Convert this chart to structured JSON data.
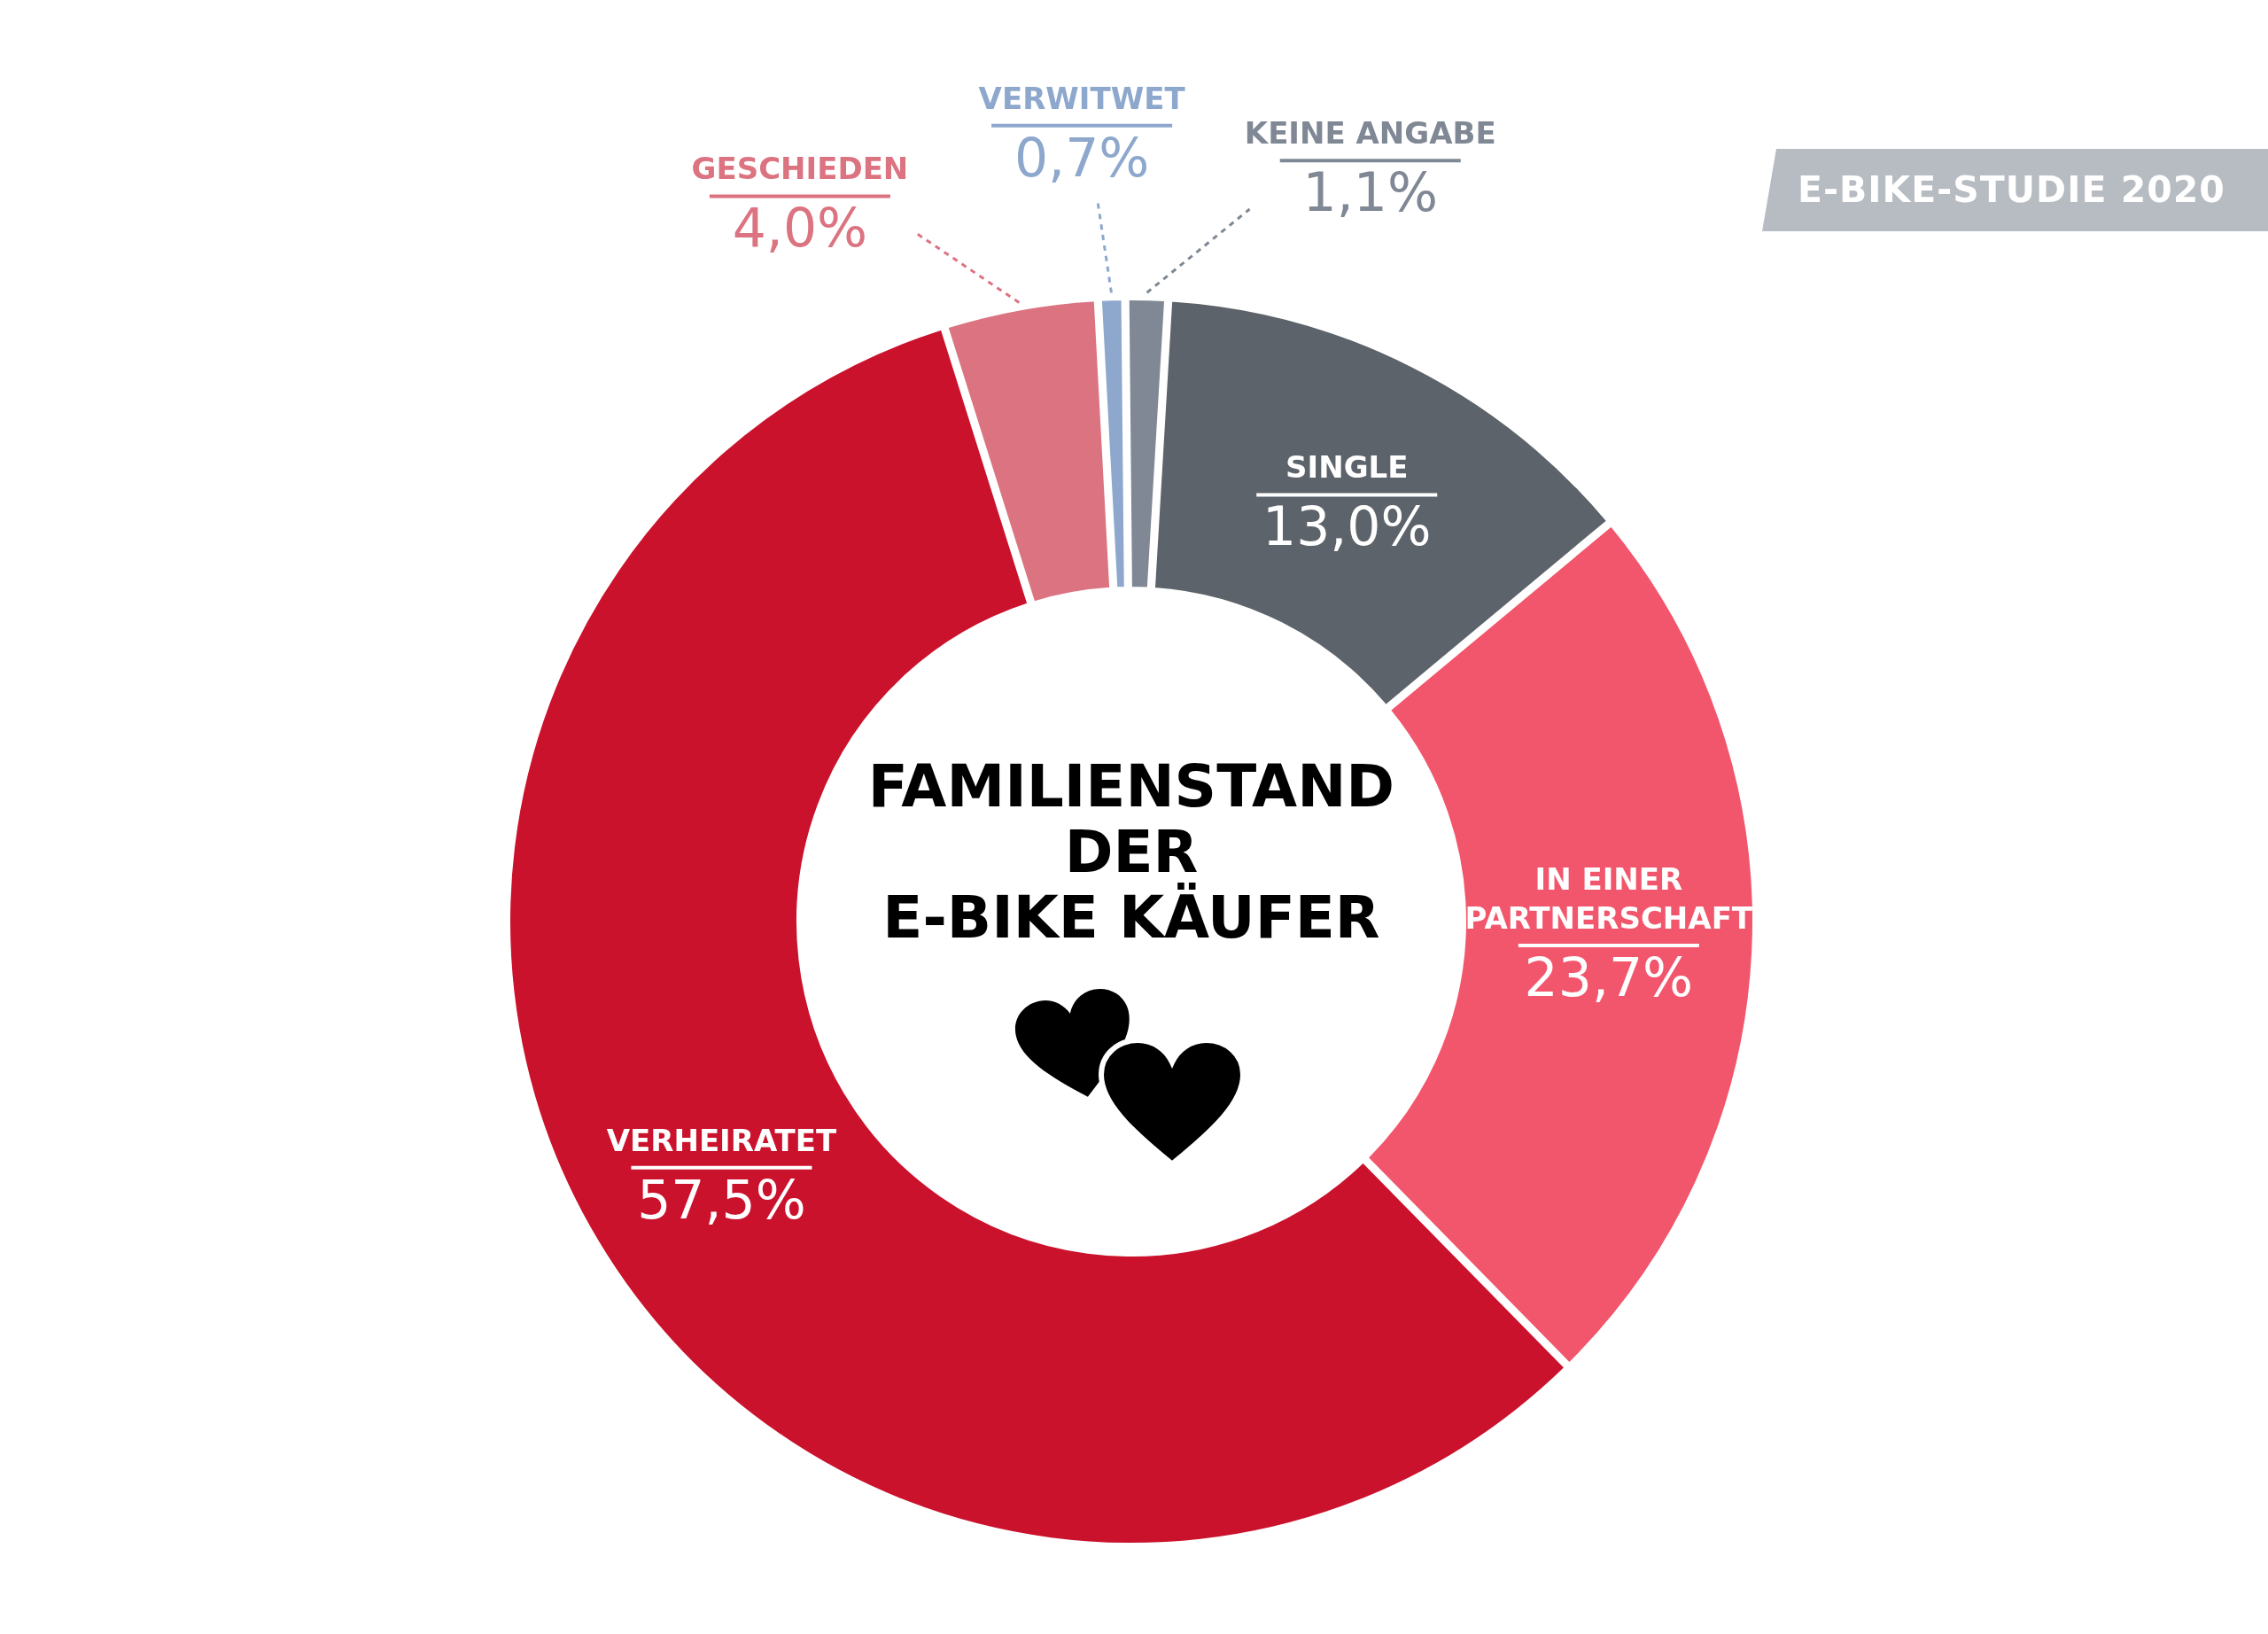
{
  "chart_data": {
    "type": "donut",
    "title": "FAMILIENSTAND\nDER\nE-BIKE KÄUFER",
    "subtitle": "E-BIKE-STUDIE 2020",
    "categories": [
      "SINGLE",
      "IN EINER PARTNERSCHAFT",
      "VERHEIRATET",
      "GESCHIEDEN",
      "VERWITWET",
      "KEINE ANGABE"
    ],
    "values": [
      13.0,
      23.7,
      57.5,
      4.0,
      0.7,
      1.1
    ],
    "colors": [
      "#5d636a",
      "#f2566c",
      "#cb122d",
      "#dc7381",
      "#8da7cd",
      "#7f8894"
    ],
    "value_labels": [
      "13,0%",
      "23,7%",
      "57,5%",
      "4,0%",
      "0,7%",
      "1,1%"
    ]
  }
}
